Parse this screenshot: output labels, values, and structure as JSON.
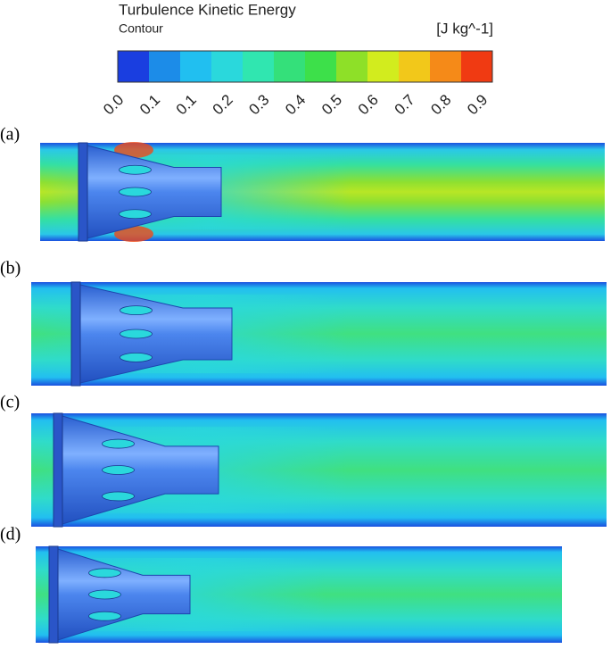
{
  "legend": {
    "title": "Turbulence Kinetic Energy",
    "subtitle": "Contour",
    "unit": "[J kg^-1]",
    "colors": [
      "#1a3ee0",
      "#1c8ce8",
      "#21bff0",
      "#2ad8dc",
      "#30e6b0",
      "#34e07a",
      "#3de04a",
      "#8ee028",
      "#d2ec1e",
      "#f2c81a",
      "#f58a18",
      "#f03a12"
    ],
    "tick_labels": [
      "0.0",
      "0.1",
      "0.1",
      "0.2",
      "0.3",
      "0.4",
      "0.5",
      "0.6",
      "0.7",
      "0.8",
      "0.9"
    ]
  },
  "panels": [
    {
      "label": "(a)"
    },
    {
      "label": "(b)"
    },
    {
      "label": "(c)"
    },
    {
      "label": "(d)"
    }
  ]
}
